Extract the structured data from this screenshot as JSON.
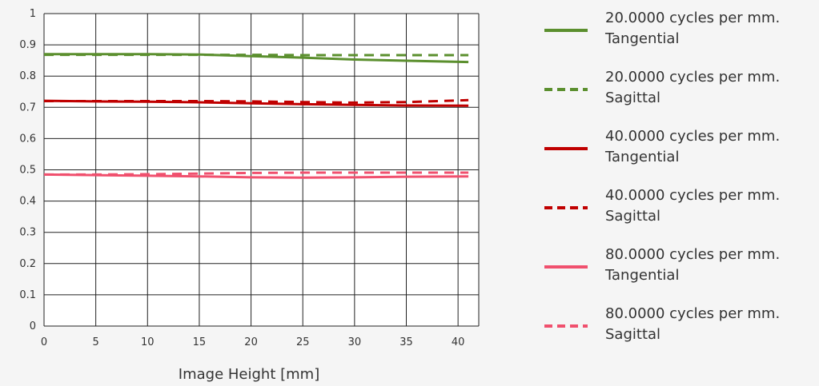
{
  "chart_data": {
    "type": "line",
    "xlabel": "Image Height [mm]",
    "ylabel": "",
    "xlim": [
      0,
      42
    ],
    "ylim": [
      0,
      1
    ],
    "x_ticks": [
      "0",
      "5",
      "10",
      "15",
      "20",
      "25",
      "30",
      "35",
      "40"
    ],
    "y_ticks": [
      "0",
      "0.1",
      "0.2",
      "0.3",
      "0.4",
      "0.5",
      "0.6",
      "0.7",
      "0.8",
      "0.9",
      "1"
    ],
    "grid": true,
    "legend_position": "right",
    "series": [
      {
        "name_line1": "20.0000 cycles per mm.",
        "name_line2": "Tangential",
        "color": "#5b8f2e",
        "dash": "solid",
        "x": [
          0,
          5,
          10,
          15,
          20,
          25,
          30,
          35,
          41
        ],
        "y": [
          0.87,
          0.87,
          0.87,
          0.869,
          0.864,
          0.859,
          0.853,
          0.849,
          0.845
        ]
      },
      {
        "name_line1": "20.0000 cycles per mm.",
        "name_line2": "Sagittal",
        "color": "#5b8f2e",
        "dash": "dashed",
        "x": [
          0,
          5,
          10,
          15,
          20,
          25,
          30,
          35,
          41
        ],
        "y": [
          0.868,
          0.868,
          0.868,
          0.868,
          0.868,
          0.867,
          0.867,
          0.867,
          0.867
        ]
      },
      {
        "name_line1": "40.0000 cycles per mm.",
        "name_line2": "Tangential",
        "color": "#c00000",
        "dash": "solid",
        "x": [
          0,
          5,
          10,
          15,
          20,
          25,
          30,
          35,
          41
        ],
        "y": [
          0.721,
          0.719,
          0.718,
          0.716,
          0.713,
          0.71,
          0.708,
          0.706,
          0.705
        ]
      },
      {
        "name_line1": "40.0000 cycles per mm.",
        "name_line2": "Sagittal",
        "color": "#c00000",
        "dash": "dashed",
        "x": [
          0,
          5,
          10,
          15,
          20,
          25,
          30,
          35,
          41
        ],
        "y": [
          0.72,
          0.72,
          0.72,
          0.72,
          0.719,
          0.717,
          0.715,
          0.717,
          0.723
        ]
      },
      {
        "name_line1": "80.0000 cycles per mm.",
        "name_line2": "Tangential",
        "color": "#f0506e",
        "dash": "solid",
        "x": [
          0,
          5,
          10,
          15,
          20,
          25,
          30,
          35,
          41
        ],
        "y": [
          0.485,
          0.483,
          0.481,
          0.479,
          0.476,
          0.475,
          0.476,
          0.478,
          0.479
        ]
      },
      {
        "name_line1": "80.0000 cycles per mm.",
        "name_line2": "Sagittal",
        "color": "#f0506e",
        "dash": "dashed",
        "x": [
          0,
          5,
          10,
          15,
          20,
          25,
          30,
          35,
          41
        ],
        "y": [
          0.485,
          0.485,
          0.486,
          0.488,
          0.49,
          0.491,
          0.491,
          0.491,
          0.491
        ]
      }
    ]
  }
}
